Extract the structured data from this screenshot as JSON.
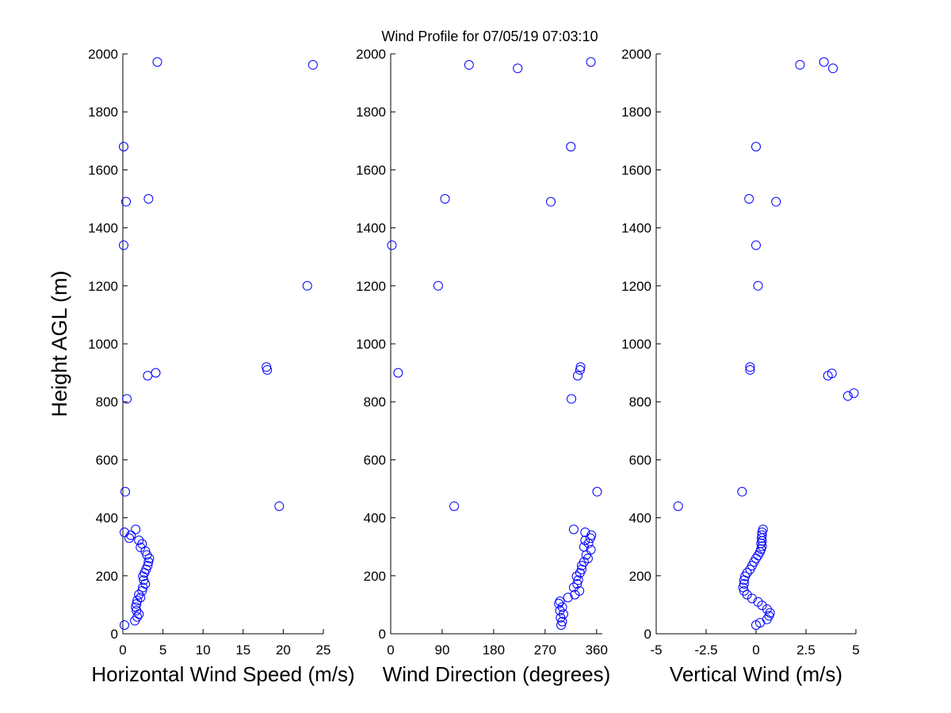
{
  "figure": {
    "title": "Wind Profile for  07/05/19 07:03:10",
    "marker_color": "#0000ff",
    "background": "#ffffff"
  },
  "chart_data": [
    {
      "type": "scatter",
      "id": "speed",
      "title": "Wind Profile for  07/05/19 07:03:10",
      "xlabel": "Horizontal Wind Speed (m/s)",
      "ylabel": "Height AGL (m)",
      "xlim": [
        0,
        25
      ],
      "ylim": [
        0,
        2000
      ],
      "xticks": [
        0,
        5,
        10,
        15,
        20,
        25
      ],
      "xtick_labels": [
        "0",
        "5",
        "10",
        "15",
        "20",
        "25"
      ],
      "yticks": [
        0,
        200,
        400,
        600,
        800,
        1000,
        1200,
        1400,
        1600,
        1800,
        2000
      ],
      "ytick_labels": [
        "0",
        "200",
        "400",
        "600",
        "800",
        "1000",
        "1200",
        "1400",
        "1600",
        "1800",
        "2000"
      ],
      "grid": false,
      "marker": "open-circle",
      "series": [
        {
          "name": "Horizontal Wind Speed",
          "points": [
            [
              0.2,
              30
            ],
            [
              1.5,
              45
            ],
            [
              1.8,
              58
            ],
            [
              2.0,
              68
            ],
            [
              1.7,
              80
            ],
            [
              1.6,
              92
            ],
            [
              1.7,
              103
            ],
            [
              1.8,
              115
            ],
            [
              2.2,
              125
            ],
            [
              2.0,
              135
            ],
            [
              2.4,
              148
            ],
            [
              2.5,
              160
            ],
            [
              2.8,
              172
            ],
            [
              2.6,
              185
            ],
            [
              2.5,
              198
            ],
            [
              2.7,
              210
            ],
            [
              2.9,
              222
            ],
            [
              3.1,
              235
            ],
            [
              3.2,
              248
            ],
            [
              3.3,
              260
            ],
            [
              3.0,
              272
            ],
            [
              2.8,
              285
            ],
            [
              2.2,
              298
            ],
            [
              2.4,
              310
            ],
            [
              2.0,
              322
            ],
            [
              0.8,
              330
            ],
            [
              1.0,
              340
            ],
            [
              0.2,
              350
            ],
            [
              1.6,
              360
            ],
            [
              19.5,
              440
            ],
            [
              0.3,
              490
            ],
            [
              0.5,
              810
            ],
            [
              3.1,
              890
            ],
            [
              4.1,
              900
            ],
            [
              18.0,
              910
            ],
            [
              17.9,
              920
            ],
            [
              23.0,
              1200
            ],
            [
              0.1,
              1340
            ],
            [
              3.2,
              1500
            ],
            [
              0.4,
              1490
            ],
            [
              0.1,
              1680
            ],
            [
              23.7,
              1962
            ],
            [
              4.3,
              1972
            ]
          ]
        }
      ]
    },
    {
      "type": "scatter",
      "id": "direction",
      "xlabel": "Wind Direction (degrees)",
      "ylabel": "",
      "xlim": [
        0,
        370
      ],
      "ylim": [
        0,
        2000
      ],
      "xticks": [
        0,
        90,
        180,
        270,
        360
      ],
      "xtick_labels": [
        "0",
        "90",
        "180",
        "270",
        "360"
      ],
      "yticks": [
        0,
        200,
        400,
        600,
        800,
        1000,
        1200,
        1400,
        1600,
        1800,
        2000
      ],
      "ytick_labels": [
        "0",
        "200",
        "400",
        "600",
        "800",
        "1000",
        "1200",
        "1400",
        "1600",
        "1800",
        "2000"
      ],
      "grid": false,
      "marker": "open-circle",
      "series": [
        {
          "name": "Wind Direction",
          "points": [
            [
              298,
              30
            ],
            [
              300,
              42
            ],
            [
              297,
              55
            ],
            [
              302,
              68
            ],
            [
              296,
              80
            ],
            [
              300,
              92
            ],
            [
              294,
              104
            ],
            [
              296,
              112
            ],
            [
              310,
              125
            ],
            [
              322,
              135
            ],
            [
              330,
              148
            ],
            [
              320,
              160
            ],
            [
              326,
              172
            ],
            [
              328,
              185
            ],
            [
              325,
              198
            ],
            [
              331,
              210
            ],
            [
              334,
              222
            ],
            [
              334,
              235
            ],
            [
              338,
              248
            ],
            [
              345,
              260
            ],
            [
              342,
              272
            ],
            [
              350,
              290
            ],
            [
              338,
              300
            ],
            [
              346,
              312
            ],
            [
              340,
              322
            ],
            [
              349,
              330
            ],
            [
              351,
              340
            ],
            [
              340,
              350
            ],
            [
              320,
              360
            ],
            [
              111,
              440
            ],
            [
              361,
              490
            ],
            [
              316,
              810
            ],
            [
              327,
              890
            ],
            [
              13,
              900
            ],
            [
              331,
              910
            ],
            [
              332,
              920
            ],
            [
              83,
              1200
            ],
            [
              2,
              1340
            ],
            [
              95,
              1500
            ],
            [
              280,
              1490
            ],
            [
              315,
              1680
            ],
            [
              137,
              1962
            ],
            [
              222,
              1950
            ],
            [
              350,
              1972
            ]
          ]
        }
      ]
    },
    {
      "type": "scatter",
      "id": "vertical",
      "xlabel": "Vertical Wind (m/s)",
      "ylabel": "",
      "xlim": [
        -5,
        5
      ],
      "ylim": [
        0,
        2000
      ],
      "xticks": [
        -5,
        -2.5,
        0,
        2.5,
        5
      ],
      "xtick_labels": [
        "-5",
        "-2.5",
        "0",
        "2.5",
        "5"
      ],
      "yticks": [
        0,
        200,
        400,
        600,
        800,
        1000,
        1200,
        1400,
        1600,
        1800,
        2000
      ],
      "ytick_labels": [
        "0",
        "200",
        "400",
        "600",
        "800",
        "1000",
        "1200",
        "1400",
        "1600",
        "1800",
        "2000"
      ],
      "grid": false,
      "marker": "open-circle",
      "series": [
        {
          "name": "Vertical Wind",
          "points": [
            [
              0.0,
              30
            ],
            [
              0.2,
              38
            ],
            [
              0.55,
              50
            ],
            [
              0.65,
              62
            ],
            [
              0.7,
              72
            ],
            [
              0.55,
              85
            ],
            [
              0.3,
              98
            ],
            [
              0.1,
              110
            ],
            [
              -0.2,
              122
            ],
            [
              -0.45,
              135
            ],
            [
              -0.6,
              148
            ],
            [
              -0.65,
              160
            ],
            [
              -0.6,
              172
            ],
            [
              -0.6,
              185
            ],
            [
              -0.55,
              198
            ],
            [
              -0.45,
              210
            ],
            [
              -0.3,
              222
            ],
            [
              -0.2,
              235
            ],
            [
              -0.1,
              248
            ],
            [
              0.0,
              260
            ],
            [
              0.1,
              270
            ],
            [
              0.2,
              282
            ],
            [
              0.25,
              292
            ],
            [
              0.3,
              302
            ],
            [
              0.25,
              312
            ],
            [
              0.3,
              320
            ],
            [
              0.28,
              330
            ],
            [
              0.3,
              340
            ],
            [
              0.3,
              350
            ],
            [
              0.35,
              360
            ],
            [
              -3.9,
              440
            ],
            [
              -0.7,
              490
            ],
            [
              4.6,
              820
            ],
            [
              4.9,
              830
            ],
            [
              3.6,
              890
            ],
            [
              3.8,
              898
            ],
            [
              -0.3,
              910
            ],
            [
              -0.3,
              920
            ],
            [
              0.1,
              1200
            ],
            [
              0.0,
              1340
            ],
            [
              -0.35,
              1500
            ],
            [
              1.0,
              1490
            ],
            [
              0.0,
              1680
            ],
            [
              2.2,
              1962
            ],
            [
              3.4,
              1972
            ],
            [
              3.85,
              1950
            ]
          ]
        }
      ]
    }
  ]
}
